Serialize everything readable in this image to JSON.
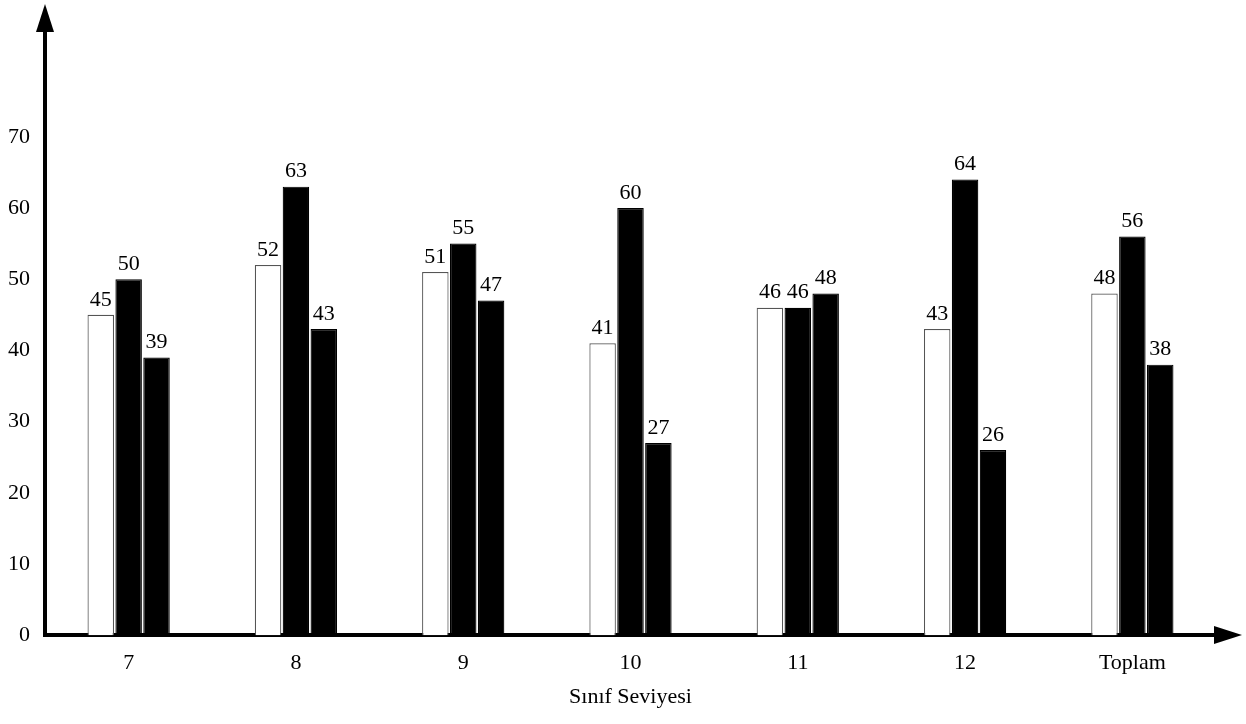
{
  "chart_data": {
    "type": "bar",
    "xlabel": "Sınıf Seviyesi",
    "categories": [
      "7",
      "8",
      "9",
      "10",
      "11",
      "12",
      "Toplam"
    ],
    "series": [
      {
        "color": "#ffffff",
        "values": [
          45,
          52,
          51,
          41,
          46,
          43,
          48
        ]
      },
      {
        "color": "#000000",
        "values": [
          50,
          63,
          55,
          60,
          46,
          64,
          56
        ]
      },
      {
        "color": "#000000",
        "values": [
          39,
          43,
          47,
          27,
          48,
          26,
          38
        ]
      }
    ],
    "ylim": [
      0,
      85
    ],
    "yticks": [
      0,
      10,
      20,
      30,
      40,
      50,
      60,
      70
    ],
    "grid": false,
    "legend": false,
    "data_labels": true
  }
}
